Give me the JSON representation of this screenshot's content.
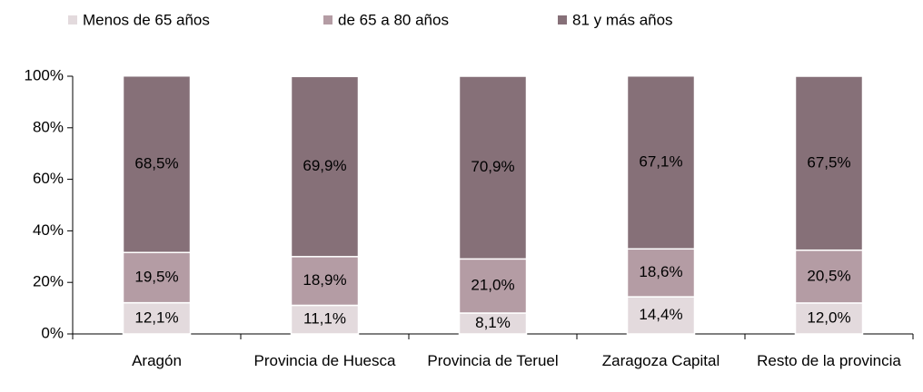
{
  "chart_data": {
    "type": "bar",
    "stacked": true,
    "categories": [
      "Aragón",
      "Provincia de Huesca",
      "Provincia de Teruel",
      "Zaragoza Capital",
      "Resto de la provincia"
    ],
    "series": [
      {
        "name": "Menos de 65 años",
        "color": "#e3dadd",
        "values": [
          12.1,
          11.1,
          8.1,
          14.4,
          12.0
        ],
        "value_labels": [
          "12,1%",
          "11,1%",
          "8,1%",
          "14,4%",
          "12,0%"
        ]
      },
      {
        "name": "de 65 a 80 años",
        "color": "#b49ca4",
        "values": [
          19.5,
          18.9,
          21.0,
          18.6,
          20.5
        ],
        "value_labels": [
          "19,5%",
          "18,9%",
          "21,0%",
          "18,6%",
          "20,5%"
        ]
      },
      {
        "name": "81 y más años",
        "color": "#867078",
        "values": [
          68.5,
          69.9,
          70.9,
          67.1,
          67.5
        ],
        "value_labels": [
          "68,5%",
          "69,9%",
          "70,9%",
          "67,1%",
          "67,5%"
        ]
      }
    ],
    "ylim": [
      0,
      100
    ],
    "yticks": [
      {
        "value": 0,
        "label": "0%"
      },
      {
        "value": 20,
        "label": "20%"
      },
      {
        "value": 40,
        "label": "40%"
      },
      {
        "value": 60,
        "label": "60%"
      },
      {
        "value": 80,
        "label": "80%"
      },
      {
        "value": 100,
        "label": "100%"
      }
    ],
    "legend": "top"
  }
}
